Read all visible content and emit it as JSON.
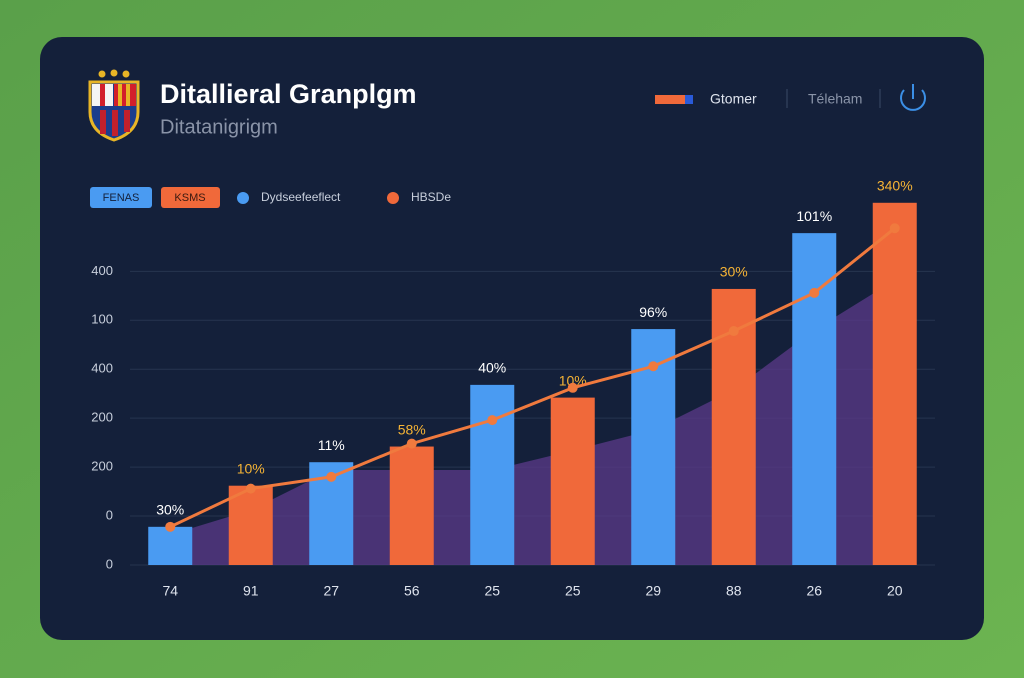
{
  "header": {
    "title": "Ditallieral Granplgm",
    "subtitle": "Ditatanigrigm",
    "nav": [
      "Gtomer",
      "Téleham"
    ]
  },
  "filters": [
    "FENAS",
    "KSMS"
  ],
  "chart_data": {
    "type": "bar",
    "categories": [
      "74",
      "91",
      "27",
      "56",
      "25",
      "25",
      "29",
      "88",
      "26",
      "20"
    ],
    "series": [
      {
        "name": "Dydseefeeflect",
        "type": "bar",
        "color": "#4a9bf2",
        "values": [
          39,
          null,
          105,
          null,
          184,
          null,
          241,
          null,
          339,
          null
        ]
      },
      {
        "name": "HBSDe",
        "type": "bar",
        "color": "#f0693a",
        "values": [
          null,
          81,
          null,
          121,
          null,
          171,
          null,
          282,
          null,
          370
        ]
      },
      {
        "type": "line",
        "color": "#f07a3e",
        "values": [
          39,
          78,
          90,
          124,
          148,
          181,
          203,
          239,
          278,
          344
        ]
      },
      {
        "type": "area",
        "color": "#5b3a8a",
        "values": [
          31,
          56,
          97,
          97,
          97,
          117,
          138,
          179,
          240,
          291
        ]
      }
    ],
    "bar_labels": [
      "30%",
      "10%",
      "11%",
      "58%",
      "40%",
      "10%",
      "96%",
      "30%",
      "101%",
      "340%"
    ],
    "ylim": [
      0,
      380
    ],
    "yticks": [
      0,
      {
        "value": 50,
        "label": "0"
      },
      {
        "value": 100,
        "label": "200"
      },
      {
        "value": 150,
        "label": "200"
      },
      {
        "value": 200,
        "label": "400"
      },
      {
        "value": 250,
        "label": "100"
      },
      {
        "value": 300,
        "label": "400"
      }
    ],
    "grid": true
  }
}
